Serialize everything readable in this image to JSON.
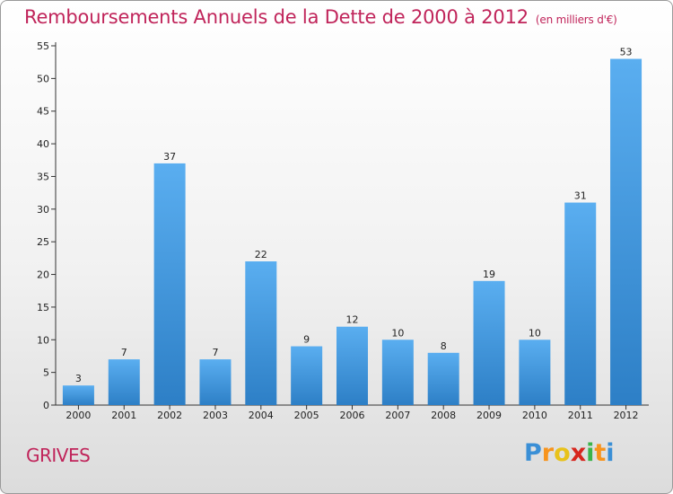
{
  "title": "Remboursements Annuels de la Dette de 2000 à 2012",
  "title_unit": "(en milliers d'€)",
  "commune": "GRIVES",
  "logo": {
    "letters": [
      "P",
      "r",
      "o",
      "x",
      "i",
      "t",
      "i"
    ],
    "colors": [
      "#3a8fd6",
      "#f7941d",
      "#e8c21a",
      "#d7261e",
      "#3bb44a",
      "#f7941d",
      "#3a8fd6"
    ]
  },
  "colors": {
    "bar_light": "#5aaef0",
    "bar_dark": "#2d7fc6",
    "accent": "#c0245a"
  },
  "chart_data": {
    "type": "bar",
    "title": "Remboursements Annuels de la Dette de 2000 à 2012",
    "xlabel": "",
    "ylabel": "",
    "categories": [
      "2000",
      "2001",
      "2002",
      "2003",
      "2004",
      "2005",
      "2006",
      "2007",
      "2008",
      "2009",
      "2010",
      "2011",
      "2012"
    ],
    "values": [
      3,
      7,
      37,
      7,
      22,
      9,
      12,
      10,
      8,
      19,
      10,
      31,
      53
    ],
    "labels": [
      "3",
      "7",
      "37",
      "7",
      "22",
      "9",
      "12",
      "10",
      "8",
      "19",
      "10",
      "31",
      "53"
    ],
    "ylim": [
      0,
      55
    ],
    "yticks": [
      "0",
      "5",
      "10",
      "15",
      "20",
      "25",
      "30",
      "35",
      "40",
      "45",
      "50",
      "55"
    ],
    "grid": false,
    "legend": "none"
  }
}
